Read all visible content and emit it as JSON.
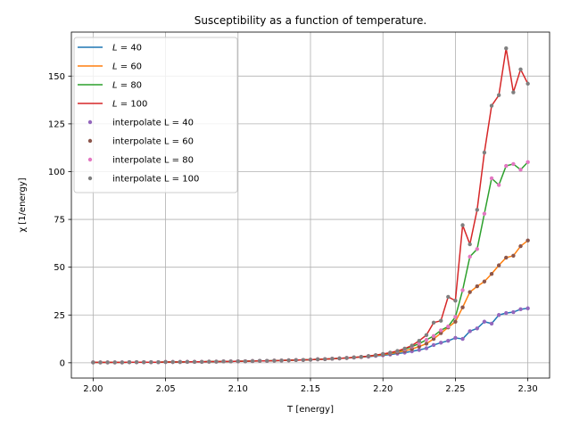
{
  "chart_data": {
    "type": "line",
    "title": "Susceptibility as a function of temperature.",
    "xlabel": "T [energy]",
    "ylabel": "χ [1/energy]",
    "xlim": [
      1.985,
      2.315
    ],
    "ylim": [
      -8,
      173
    ],
    "xticks": [
      2.0,
      2.05,
      2.1,
      2.15,
      2.2,
      2.25,
      2.3
    ],
    "xtick_labels": [
      "2.00",
      "2.05",
      "2.10",
      "2.15",
      "2.20",
      "2.25",
      "2.30"
    ],
    "yticks": [
      0,
      25,
      50,
      75,
      100,
      125,
      150
    ],
    "ytick_labels": [
      "0",
      "25",
      "50",
      "75",
      "100",
      "125",
      "150"
    ],
    "grid": true,
    "legend_position": "top-left",
    "x": [
      2.0,
      2.005,
      2.01,
      2.015,
      2.02,
      2.025,
      2.03,
      2.035,
      2.04,
      2.045,
      2.05,
      2.055,
      2.06,
      2.065,
      2.07,
      2.075,
      2.08,
      2.085,
      2.09,
      2.095,
      2.1,
      2.105,
      2.11,
      2.115,
      2.12,
      2.125,
      2.13,
      2.135,
      2.14,
      2.145,
      2.15,
      2.155,
      2.16,
      2.165,
      2.17,
      2.175,
      2.18,
      2.185,
      2.19,
      2.195,
      2.2,
      2.205,
      2.21,
      2.215,
      2.22,
      2.225,
      2.23,
      2.235,
      2.24,
      2.245,
      2.25,
      2.255,
      2.26,
      2.265,
      2.27,
      2.275,
      2.28,
      2.285,
      2.29,
      2.295,
      2.3
    ],
    "series": [
      {
        "name": "L = 40",
        "label_prefix": "L",
        "label_suffix": " = 40",
        "color": "#1f77b4",
        "values": [
          0.2,
          0.2,
          0.2,
          0.2,
          0.2,
          0.3,
          0.3,
          0.3,
          0.3,
          0.3,
          0.4,
          0.4,
          0.4,
          0.5,
          0.5,
          0.5,
          0.6,
          0.6,
          0.7,
          0.7,
          0.8,
          0.8,
          0.9,
          1.0,
          1.0,
          1.1,
          1.2,
          1.3,
          1.4,
          1.5,
          1.6,
          1.8,
          1.9,
          2.1,
          2.3,
          2.5,
          2.7,
          3.0,
          3.2,
          3.6,
          3.9,
          4.3,
          4.8,
          5.3,
          6.0,
          6.7,
          7.6,
          9.3,
          10.5,
          11.5,
          13.0,
          12.5,
          16.5,
          18.0,
          21.5,
          20.5,
          25.0,
          26.0,
          26.5,
          28.0,
          28.5
        ]
      },
      {
        "name": "L = 60",
        "label_prefix": "L",
        "label_suffix": " = 60",
        "color": "#ff7f0e",
        "values": [
          0.2,
          0.2,
          0.2,
          0.2,
          0.2,
          0.3,
          0.3,
          0.3,
          0.3,
          0.3,
          0.4,
          0.4,
          0.4,
          0.5,
          0.5,
          0.5,
          0.6,
          0.6,
          0.7,
          0.7,
          0.8,
          0.8,
          0.9,
          1.0,
          1.0,
          1.1,
          1.2,
          1.3,
          1.4,
          1.5,
          1.6,
          1.8,
          1.9,
          2.1,
          2.3,
          2.5,
          2.8,
          3.0,
          3.4,
          3.8,
          4.2,
          4.8,
          5.4,
          6.2,
          7.2,
          8.5,
          10.0,
          12.5,
          15.5,
          18.5,
          21.5,
          29.0,
          37.0,
          40.0,
          42.5,
          46.5,
          51.0,
          55.0,
          56.0,
          61.0,
          64.0
        ]
      },
      {
        "name": "L = 80",
        "label_prefix": "L",
        "label_suffix": " = 80",
        "color": "#2ca02c",
        "values": [
          0.2,
          0.2,
          0.2,
          0.2,
          0.2,
          0.3,
          0.3,
          0.3,
          0.3,
          0.3,
          0.4,
          0.4,
          0.4,
          0.5,
          0.5,
          0.5,
          0.6,
          0.6,
          0.7,
          0.7,
          0.8,
          0.8,
          0.9,
          1.0,
          1.0,
          1.1,
          1.2,
          1.3,
          1.4,
          1.5,
          1.6,
          1.8,
          1.9,
          2.1,
          2.3,
          2.5,
          2.8,
          3.1,
          3.5,
          4.0,
          4.5,
          5.2,
          6.0,
          7.0,
          8.5,
          10.0,
          12.0,
          14.0,
          17.0,
          19.0,
          24.0,
          38.0,
          55.5,
          59.5,
          78.0,
          96.5,
          93.0,
          103.0,
          104.0,
          101.0,
          105.0
        ]
      },
      {
        "name": "L = 100",
        "label_prefix": "L",
        "label_suffix": " = 100",
        "color": "#d62728",
        "values": [
          0.2,
          0.2,
          0.2,
          0.2,
          0.2,
          0.3,
          0.3,
          0.3,
          0.3,
          0.3,
          0.4,
          0.4,
          0.4,
          0.5,
          0.5,
          0.5,
          0.6,
          0.6,
          0.7,
          0.7,
          0.8,
          0.8,
          0.9,
          1.0,
          1.0,
          1.1,
          1.2,
          1.3,
          1.4,
          1.5,
          1.6,
          1.8,
          1.9,
          2.1,
          2.3,
          2.5,
          2.8,
          3.1,
          3.5,
          4.0,
          4.6,
          5.3,
          6.2,
          7.4,
          9.0,
          11.5,
          14.5,
          21.0,
          22.0,
          34.5,
          32.5,
          72.0,
          62.0,
          80.0,
          110.0,
          134.5,
          140.0,
          164.5,
          141.5,
          153.5,
          146.0
        ]
      }
    ],
    "interpolate_series": [
      {
        "name": "interpolate L = 40",
        "color": "#9467bd",
        "of": 0
      },
      {
        "name": "interpolate L = 60",
        "color": "#8c564b",
        "of": 1
      },
      {
        "name": "interpolate L = 80",
        "color": "#e377c2",
        "of": 2
      },
      {
        "name": "interpolate L = 100",
        "color": "#7f7f7f",
        "of": 3
      }
    ]
  }
}
